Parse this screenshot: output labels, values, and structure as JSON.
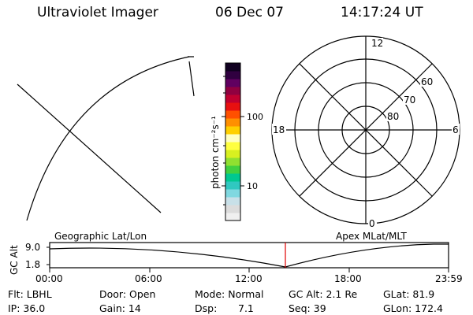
{
  "header": {
    "title": "Ultraviolet Imager",
    "date": "06 Dec 07",
    "time": "14:17:24 UT"
  },
  "colorbar": {
    "unit_label": "photon cm⁻²s⁻¹",
    "ticks": [
      "100",
      "10"
    ],
    "colors": [
      "#f0f0f0",
      "#dcdcdc",
      "#c8e0e8",
      "#80d8e0",
      "#30c8c0",
      "#00c890",
      "#40d040",
      "#90e030",
      "#d8f020",
      "#ffff40",
      "#ffffc0",
      "#ffd000",
      "#ff9000",
      "#ff5000",
      "#e81010",
      "#c00030",
      "#900040",
      "#600060",
      "#300040",
      "#100020"
    ]
  },
  "polar": {
    "mlt_labels": {
      "top": "12",
      "left": "18",
      "right": "6",
      "bottom": "0"
    },
    "lat_labels": [
      "60",
      "70",
      "80"
    ]
  },
  "altitude_plot": {
    "y_title": "GC Alt",
    "y_ticks": [
      "9.0",
      "1.8"
    ],
    "left_title": "Geographic Lat/Lon",
    "right_title": "Apex MLat/MLT",
    "x_ticks": [
      "00:00",
      "06:00",
      "12:00",
      "18:00",
      "23:59"
    ],
    "marker_color": "#e00000"
  },
  "info": {
    "filter": "Flt: LBHL",
    "ip": "IP: 36.0",
    "door": "Door: Open",
    "gain": "Gain: 14",
    "mode": "Mode: Normal",
    "dsp_label": "Dsp:",
    "dsp_value": "7.1",
    "gc_alt": "GC Alt: 2.1 Re",
    "seq": "Seq: 39",
    "glat": "GLat: 81.9",
    "glon": "GLon: 172.4"
  }
}
